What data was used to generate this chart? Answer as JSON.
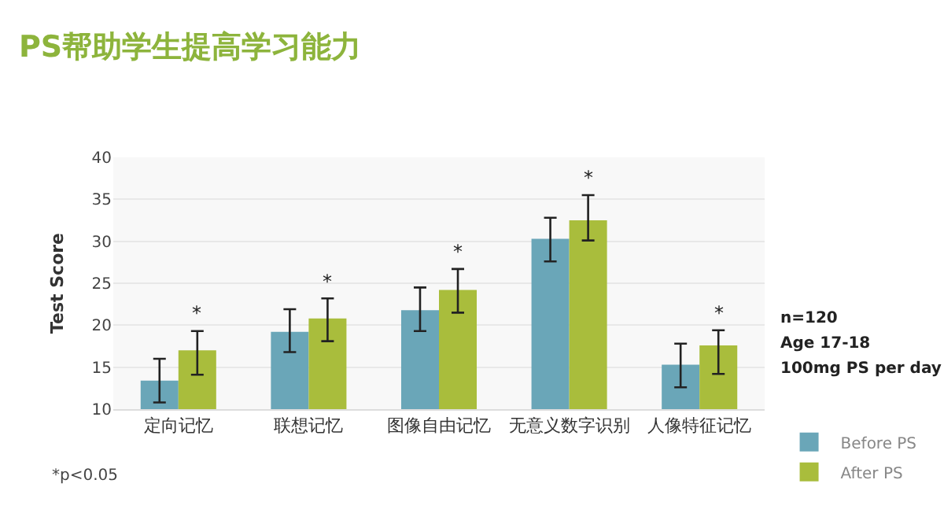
{
  "chart_data": {
    "type": "bar",
    "title": "PS帮助学生提高学习能力",
    "ylabel": "Test Score",
    "categories": [
      "定向记忆",
      "联想记忆",
      "图像自由记忆",
      "无意义数字识别",
      "人像特征记忆"
    ],
    "series": [
      {
        "name": "Before PS",
        "color": "#6aa6b8",
        "values": [
          13.4,
          19.2,
          21.8,
          30.3,
          15.3
        ],
        "errors": [
          [
            10.8,
            16.0
          ],
          [
            16.8,
            21.9
          ],
          [
            19.3,
            24.5
          ],
          [
            27.6,
            32.8
          ],
          [
            12.6,
            17.8
          ]
        ]
      },
      {
        "name": "After PS",
        "color": "#a9bd3c",
        "values": [
          17.0,
          20.8,
          24.2,
          32.5,
          17.6
        ],
        "errors": [
          [
            14.1,
            19.3
          ],
          [
            18.1,
            23.2
          ],
          [
            21.5,
            26.7
          ],
          [
            30.1,
            35.5
          ],
          [
            14.2,
            19.4
          ]
        ]
      }
    ],
    "ylim": [
      10,
      40
    ],
    "yticks": [
      10,
      15,
      20,
      25,
      30,
      35,
      40
    ],
    "grid": "y",
    "legend": "bottom right",
    "annotations": [
      "*",
      "*",
      "*",
      "*",
      "*",
      "n=120",
      "Age 17-18",
      "100mg PS per day",
      "*p<0.05"
    ]
  }
}
